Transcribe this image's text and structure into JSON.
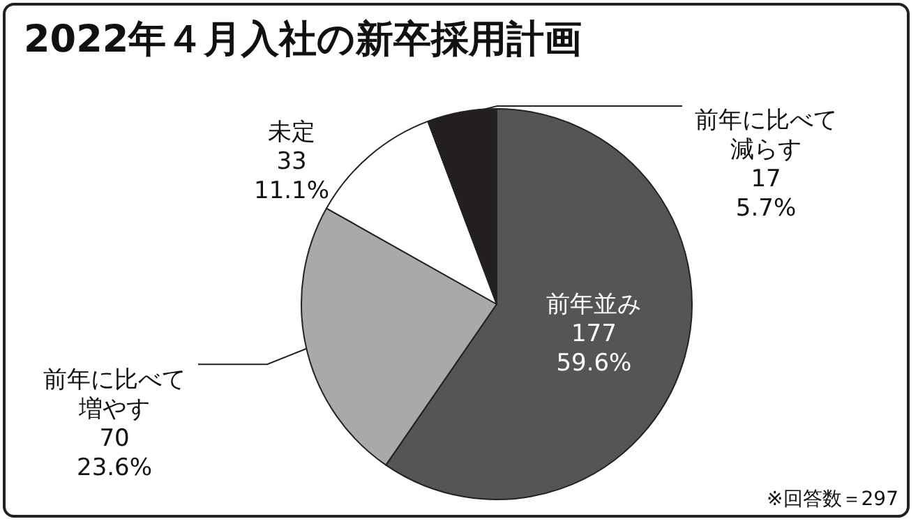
{
  "chart_data": {
    "type": "pie",
    "title": "2022年４月入社の新卒採用計画",
    "categories": [
      "前年並み",
      "前年に比べて増やす",
      "未定",
      "前年に比べて減らす"
    ],
    "values": [
      177,
      70,
      33,
      17
    ],
    "value_labels": [
      "177\n59.6%",
      "70\n23.6%",
      "33\n11.1%",
      "17\n5.7%"
    ],
    "colors": [
      "#555555",
      "#a9a9a9",
      "#ffffff",
      "#231f20"
    ],
    "annotations": [
      "※回答数＝297"
    ],
    "legend": false
  }
}
